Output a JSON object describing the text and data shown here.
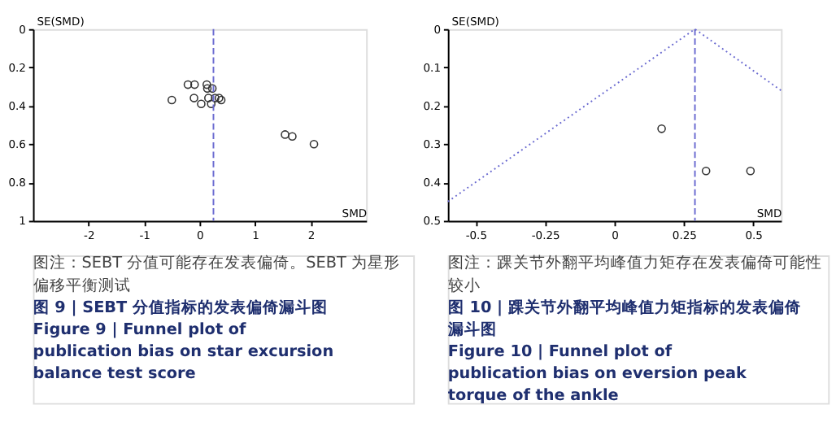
{
  "chart_data": [
    {
      "type": "scatter",
      "title": "图 9 | SEBT 分值指标的发表偏倚漏斗图",
      "subtitle": "Figure 9 | Funnel plot of publication bias on star excursion balance test score",
      "xlabel": "SMD",
      "ylabel": "SE(SMD)",
      "annotations": [
        "图注：SEBT 分值可能存在发表偏倚。SEBT 为星形偏移平衡测试"
      ],
      "xlim": [
        -3,
        3
      ],
      "xticks": [
        -2,
        -1,
        0,
        1,
        2
      ],
      "ylim": [
        1,
        0
      ],
      "yticks": [
        0,
        0.2,
        0.4,
        0.6,
        0.8,
        1
      ],
      "grid": false,
      "ref_lines": [
        {
          "axis": "x",
          "value": 0.25,
          "color": "#6a6ad0",
          "line_style": "dashed"
        }
      ],
      "series": [
        {
          "color": "#333333",
          "marker": "circle",
          "x": [
            -0.21,
            -0.09,
            0.13,
            0.14,
            0.23,
            0.16,
            0.28,
            0.35,
            0.39,
            -0.1,
            -0.5,
            0.03,
            0.21,
            1.54,
            1.67,
            2.06
          ],
          "values": [
            0.29,
            0.29,
            0.29,
            0.31,
            0.31,
            0.36,
            0.36,
            0.36,
            0.37,
            0.36,
            0.37,
            0.39,
            0.39,
            0.55,
            0.56,
            0.6
          ]
        }
      ]
    },
    {
      "type": "scatter",
      "title": "图 10 | 踝关节外翻平均峰值力矩指标的发表偏倚漏斗图",
      "subtitle": "Figure 10 | Funnel plot of publication bias on eversion peak torque of the ankle",
      "xlabel": "SMD",
      "ylabel": "SE(SMD)",
      "annotations": [
        "图注：踝关节外翻平均峰值力矩存在发表偏倚可能性较小"
      ],
      "xlim": [
        -0.6,
        0.6
      ],
      "xticks": [
        -0.5,
        -0.25,
        0,
        0.25,
        0.5
      ],
      "ylim": [
        0.5,
        0
      ],
      "yticks": [
        0,
        0.1,
        0.2,
        0.3,
        0.4,
        0.5
      ],
      "grid": false,
      "ref_lines": [
        {
          "axis": "x",
          "value": 0.29,
          "color": "#6a6ad0",
          "line_style": "dashed"
        }
      ],
      "series": [
        {
          "color": "#333333",
          "marker": "circle",
          "x": [
            0.17,
            0.33,
            0.49
          ],
          "values": [
            0.26,
            0.37,
            0.37
          ]
        },
        {
          "type": "line",
          "color": "#6a6ad0",
          "line_style": "dotted",
          "x": [
            -0.6,
            0.29,
            0.6
          ],
          "values": [
            0.45,
            0,
            0.16
          ]
        }
      ]
    }
  ]
}
